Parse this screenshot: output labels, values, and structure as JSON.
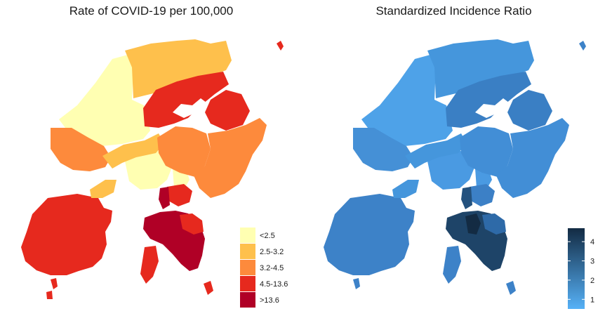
{
  "left_map": {
    "title": "Rate of COVID-19 per 100,000",
    "legend": [
      {
        "label": "<2.5",
        "color": "#ffffb2"
      },
      {
        "label": "2.5-3.2",
        "color": "#fec04c"
      },
      {
        "label": "3.2-4.5",
        "color": "#fd8a3c"
      },
      {
        "label": "4.5-13.6",
        "color": "#e6291e"
      },
      {
        "label": ">13.6",
        "color": "#b00026"
      }
    ]
  },
  "right_map": {
    "title": "Standardized Incidence Ratio",
    "legend": {
      "ticks": [
        "1",
        "2",
        "3",
        "4"
      ],
      "tick_values": [
        1,
        2,
        3,
        4
      ],
      "range": [
        0.5,
        4.7
      ],
      "color_low": "#56b1f7",
      "color_high": "#132b43"
    }
  }
}
